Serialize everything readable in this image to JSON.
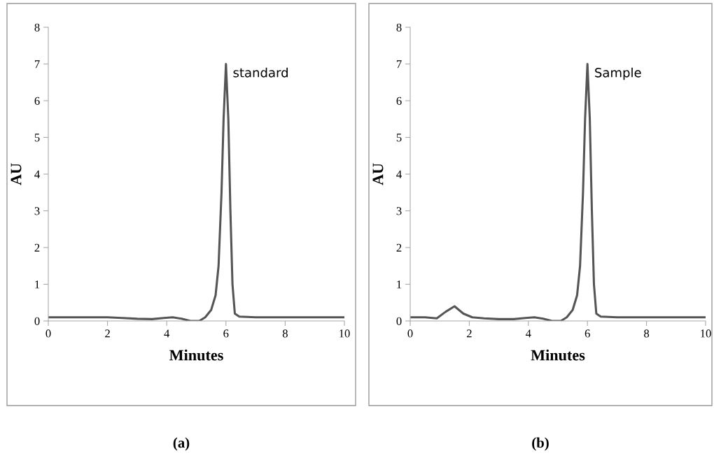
{
  "chart_data": [
    {
      "type": "line",
      "xlabel": "Minutes",
      "ylabel": "AU",
      "xlim": [
        0,
        10
      ],
      "ylim": [
        0,
        8
      ],
      "xticks": [
        0,
        2,
        4,
        6,
        8,
        10
      ],
      "yticks": [
        0,
        1,
        2,
        3,
        4,
        5,
        6,
        7,
        8
      ],
      "grid": false,
      "legend": false,
      "marker": "none",
      "line_style": "solid",
      "x": [
        0,
        1,
        2,
        2.5,
        3,
        3.5,
        3.9,
        4.2,
        4.5,
        4.8,
        5.1,
        5.3,
        5.5,
        5.65,
        5.75,
        5.85,
        5.92,
        6.0,
        6.08,
        6.15,
        6.22,
        6.3,
        6.45,
        7,
        8,
        10
      ],
      "series": [
        {
          "color": "#555555",
          "values": [
            0.1,
            0.1,
            0.1,
            0.08,
            0.06,
            0.05,
            0.08,
            0.1,
            0.06,
            0.0,
            0.0,
            0.1,
            0.3,
            0.7,
            1.5,
            3.5,
            5.5,
            7.0,
            5.5,
            3.0,
            1.0,
            0.2,
            0.12,
            0.1,
            0.1,
            0.1
          ]
        }
      ],
      "annotations": [
        {
          "text": "standard",
          "x": 6,
          "y": 7
        },
        "(a)"
      ]
    },
    {
      "type": "line",
      "xlabel": "Minutes",
      "ylabel": "AU",
      "xlim": [
        0,
        10
      ],
      "ylim": [
        0,
        8
      ],
      "xticks": [
        0,
        2,
        4,
        6,
        8,
        10
      ],
      "yticks": [
        0,
        1,
        2,
        3,
        4,
        5,
        6,
        7,
        8
      ],
      "grid": false,
      "legend": false,
      "marker": "none",
      "line_style": "solid",
      "x": [
        0,
        0.5,
        0.9,
        1.2,
        1.5,
        1.8,
        2.1,
        2.5,
        3,
        3.5,
        3.9,
        4.2,
        4.5,
        4.8,
        5.1,
        5.3,
        5.5,
        5.65,
        5.75,
        5.85,
        5.92,
        6.0,
        6.08,
        6.15,
        6.22,
        6.3,
        6.45,
        7,
        8,
        10
      ],
      "series": [
        {
          "color": "#555555",
          "values": [
            0.1,
            0.1,
            0.07,
            0.25,
            0.4,
            0.2,
            0.1,
            0.07,
            0.05,
            0.05,
            0.08,
            0.1,
            0.06,
            0.0,
            0.0,
            0.1,
            0.3,
            0.7,
            1.5,
            3.5,
            5.5,
            7.0,
            5.5,
            3.0,
            1.0,
            0.2,
            0.12,
            0.1,
            0.1,
            0.1
          ]
        }
      ],
      "annotations": [
        {
          "text": "Sample",
          "x": 6,
          "y": 7
        },
        "(b)"
      ]
    }
  ]
}
